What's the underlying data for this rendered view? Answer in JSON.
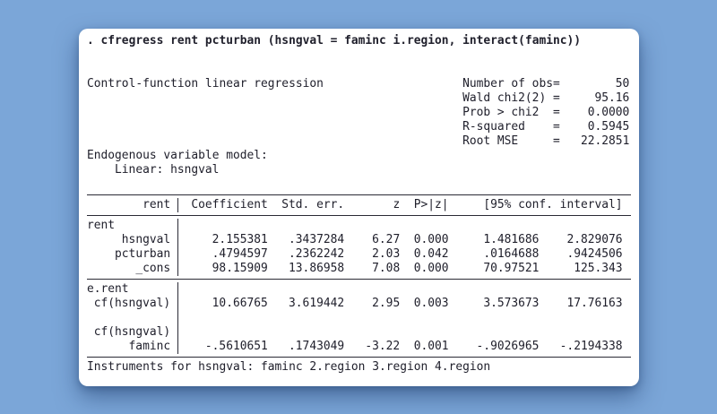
{
  "command": ". cfregress rent pcturban (hsngval = faminc i.region, interact(faminc))",
  "model_title": "Control-function linear regression",
  "stats": {
    "equals": "=",
    "rows": [
      {
        "label": "Number of obs",
        "value": "50"
      },
      {
        "label": "Wald chi2(2)",
        "value": "95.16"
      },
      {
        "label": "Prob > chi2",
        "value": "0.0000"
      },
      {
        "label": "R-squared",
        "value": "0.5945"
      },
      {
        "label": "Root MSE",
        "value": "22.2851"
      }
    ]
  },
  "endog": {
    "header": "Endogenous variable model:",
    "detail": "Linear: hsngval"
  },
  "table": {
    "header": {
      "depvar": "rent",
      "coef": "Coefficient",
      "se": "Std. err.",
      "z": "z",
      "p": "P>|z|",
      "ci": "[95% conf. interval]"
    },
    "rows": [
      {
        "kind": "eq",
        "label": "rent"
      },
      {
        "kind": "var",
        "label": "hsngval",
        "coef": "2.155381",
        "se": ".3437284",
        "z": "6.27",
        "p": "0.000",
        "lo": "1.481686",
        "hi": "2.829076"
      },
      {
        "kind": "var",
        "label": "pcturban",
        "coef": ".4794597",
        "se": ".2362242",
        "z": "2.03",
        "p": "0.042",
        "lo": ".0164688",
        "hi": ".9424506"
      },
      {
        "kind": "var",
        "label": "_cons",
        "coef": "98.15909",
        "se": "13.86958",
        "z": "7.08",
        "p": "0.000",
        "lo": "70.97521",
        "hi": "125.343"
      },
      {
        "kind": "eq",
        "label": "e.rent"
      },
      {
        "kind": "var",
        "label": "cf(hsngval)",
        "coef": "10.66765",
        "se": "3.619442",
        "z": "2.95",
        "p": "0.003",
        "lo": "3.573673",
        "hi": "17.76163"
      },
      {
        "kind": "varlabel",
        "label": "cf(hsngval)"
      },
      {
        "kind": "var",
        "label": "faminc",
        "coef": "-.5610651",
        "se": ".1743049",
        "z": "-3.22",
        "p": "0.001",
        "lo": "-.9026965",
        "hi": "-.2194338"
      }
    ]
  },
  "footer": "Instruments for hsngval: faminc 2.region 3.region 4.region"
}
